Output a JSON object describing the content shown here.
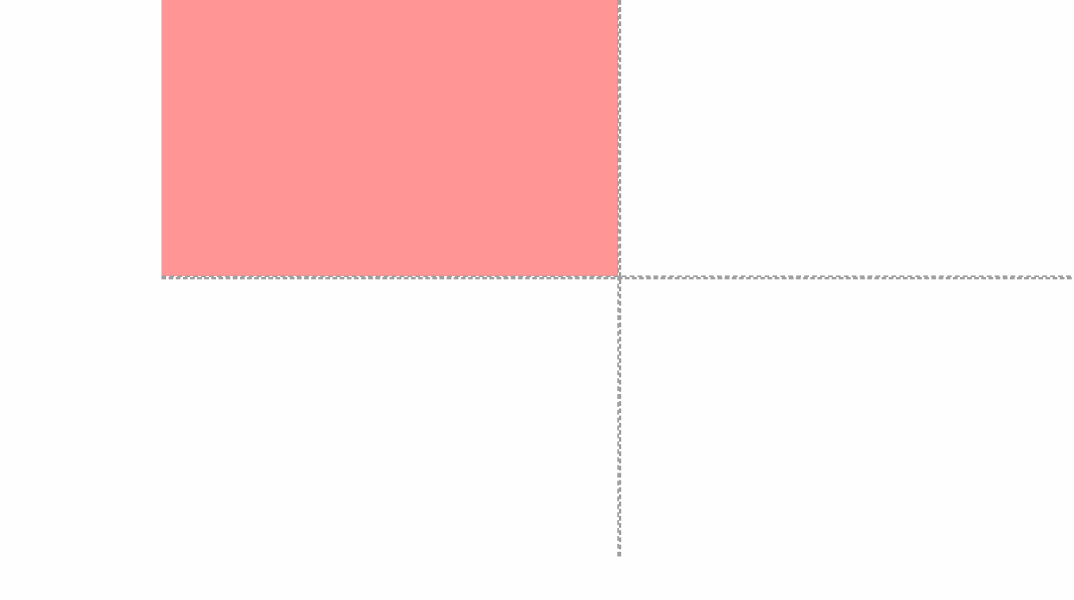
{
  "canvas": {
    "background_color": "#fefefe"
  },
  "block": {
    "fill_color": "#ff9595"
  },
  "guides": {
    "color": "#a0a0a0",
    "style": "dashed"
  }
}
